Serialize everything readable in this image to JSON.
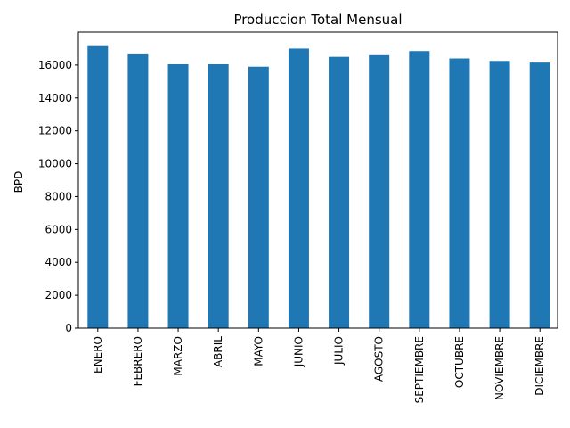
{
  "chart_data": {
    "type": "bar",
    "title": "Produccion Total Mensual",
    "xlabel": "",
    "ylabel": "BPD",
    "ylim": [
      0,
      18000
    ],
    "yticks": [
      0,
      2000,
      4000,
      6000,
      8000,
      10000,
      12000,
      14000,
      16000
    ],
    "categories": [
      "ENERO",
      "FEBRERO",
      "MARZO",
      "ABRIL",
      "MAYO",
      "JUNIO",
      "JULIO",
      "AGOSTO",
      "SEPTIEMBRE",
      "OCTUBRE",
      "NOVIEMBRE",
      "DICIEMBRE"
    ],
    "values": [
      17150,
      16650,
      16050,
      16050,
      15900,
      17000,
      16500,
      16600,
      16850,
      16400,
      16250,
      16150
    ],
    "bar_color": "#1f77b4",
    "grid": false,
    "legend": "none"
  }
}
